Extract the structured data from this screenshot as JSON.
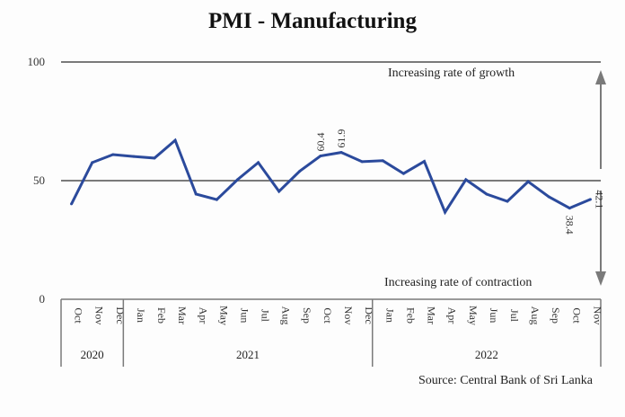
{
  "chart_data": {
    "type": "line",
    "title": "PMI - Manufacturing",
    "xlabel": "",
    "ylabel": "",
    "ylim": [
      0,
      100
    ],
    "yticks": [
      "0",
      "50",
      "100"
    ],
    "grid": false,
    "reference_lines": [
      50,
      100
    ],
    "groups": [
      {
        "label": "2020",
        "months": [
          "Oct",
          "Nov",
          "Dec"
        ]
      },
      {
        "label": "2021",
        "months": [
          "Jan",
          "Feb",
          "Mar",
          "Apr",
          "May",
          "Jun",
          "Jul",
          "Aug",
          "Sep",
          "Oct",
          "Nov",
          "Dec"
        ]
      },
      {
        "label": "2022",
        "months": [
          "Jan",
          "Feb",
          "Mar",
          "Apr",
          "May",
          "Jun",
          "Jul",
          "Aug",
          "Sep",
          "Oct",
          "Nov"
        ]
      }
    ],
    "series": [
      {
        "name": "PMI - Manufacturing",
        "color": "#2b4a9c",
        "values": [
          40.2,
          57.6,
          61.0,
          60.2,
          59.5,
          67.0,
          44.3,
          42.0,
          50.4,
          57.6,
          45.5,
          54.0,
          60.4,
          61.9,
          58.0,
          58.4,
          53.0,
          58.1,
          36.7,
          50.4,
          44.3,
          41.3,
          49.6,
          43.2,
          38.4,
          42.1
        ]
      }
    ],
    "data_labels": [
      {
        "index": 12,
        "text": "60.4",
        "position": "above"
      },
      {
        "index": 13,
        "text": "61.9",
        "position": "above"
      },
      {
        "index": 24,
        "text": "38.4",
        "position": "below"
      },
      {
        "index": 25,
        "text": "42.1",
        "position": "right"
      }
    ],
    "annotations": {
      "growth": "Increasing rate of growth",
      "contraction": "Increasing rate of contraction"
    },
    "source": "Source: Central Bank of Sri Lanka"
  }
}
